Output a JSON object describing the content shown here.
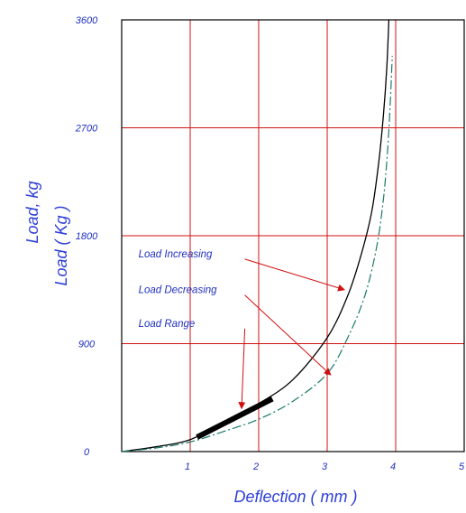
{
  "chart_data": {
    "type": "line",
    "xlabel": "Deflection ( mm )",
    "ylabel": "Load ( Kg )",
    "ylabel_outer": "Load, kg",
    "xlim": [
      0,
      5
    ],
    "ylim": [
      0,
      3600
    ],
    "x_ticks": [
      "1",
      "2",
      "3",
      "4",
      "5"
    ],
    "y_ticks": [
      "0",
      "900",
      "1800",
      "2700",
      "3600"
    ],
    "x_tick_values": [
      1,
      2,
      3,
      4,
      5
    ],
    "y_tick_values": [
      0,
      900,
      1800,
      2700,
      3600
    ],
    "grid": true,
    "colors": {
      "grid": "#d01010",
      "frame": "#000000",
      "tick_text": "#1f2fbf",
      "axis_title": "#2e3fd6",
      "load_increasing": "#000000",
      "load_decreasing": "#1a7a6a",
      "load_range": "#000000",
      "arrow": "#d01010"
    },
    "series": [
      {
        "name": "Load Increasing",
        "style": "solid",
        "x": [
          0.0,
          0.5,
          1.0,
          1.5,
          2.0,
          2.5,
          3.0,
          3.3,
          3.5,
          3.65,
          3.75,
          3.82,
          3.87,
          3.9
        ],
        "y": [
          0,
          40,
          100,
          250,
          400,
          600,
          950,
          1300,
          1650,
          2000,
          2400,
          2800,
          3200,
          3600
        ]
      },
      {
        "name": "Load Decreasing",
        "style": "dashed",
        "x": [
          0.0,
          0.5,
          1.0,
          1.5,
          2.0,
          2.5,
          3.0,
          3.3,
          3.55,
          3.72,
          3.82,
          3.88,
          3.92,
          3.95
        ],
        "y": [
          0,
          30,
          80,
          170,
          270,
          420,
          650,
          950,
          1300,
          1700,
          2100,
          2500,
          2900,
          3300
        ]
      },
      {
        "name": "Load Range",
        "style": "thick",
        "x": [
          1.1,
          2.2
        ],
        "y": [
          120,
          440
        ]
      }
    ],
    "annotations": [
      {
        "text": "Load Increasing",
        "x": 1.85,
        "y": 1620,
        "target_x": 3.25,
        "target_y": 1350
      },
      {
        "text": "Load Decreasing",
        "x": 1.85,
        "y": 1320,
        "target_x": 3.05,
        "target_y": 640
      },
      {
        "text": "Load Range",
        "x": 1.85,
        "y": 1040,
        "target_x": 1.75,
        "target_y": 360
      }
    ]
  }
}
